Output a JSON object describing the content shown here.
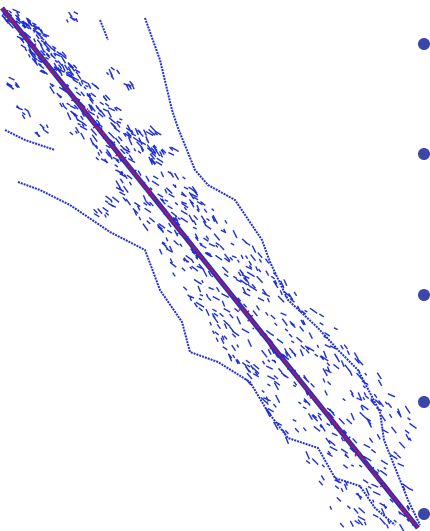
{
  "colors": {
    "background": "#ffffff",
    "pattern": "#1f2fd6",
    "diagonal": "#c0143c",
    "marker": "#3a47a8"
  },
  "markers": [
    {
      "id": "marker-1"
    },
    {
      "id": "marker-2"
    },
    {
      "id": "marker-3"
    },
    {
      "id": "marker-4"
    },
    {
      "id": "marker-5"
    }
  ]
}
